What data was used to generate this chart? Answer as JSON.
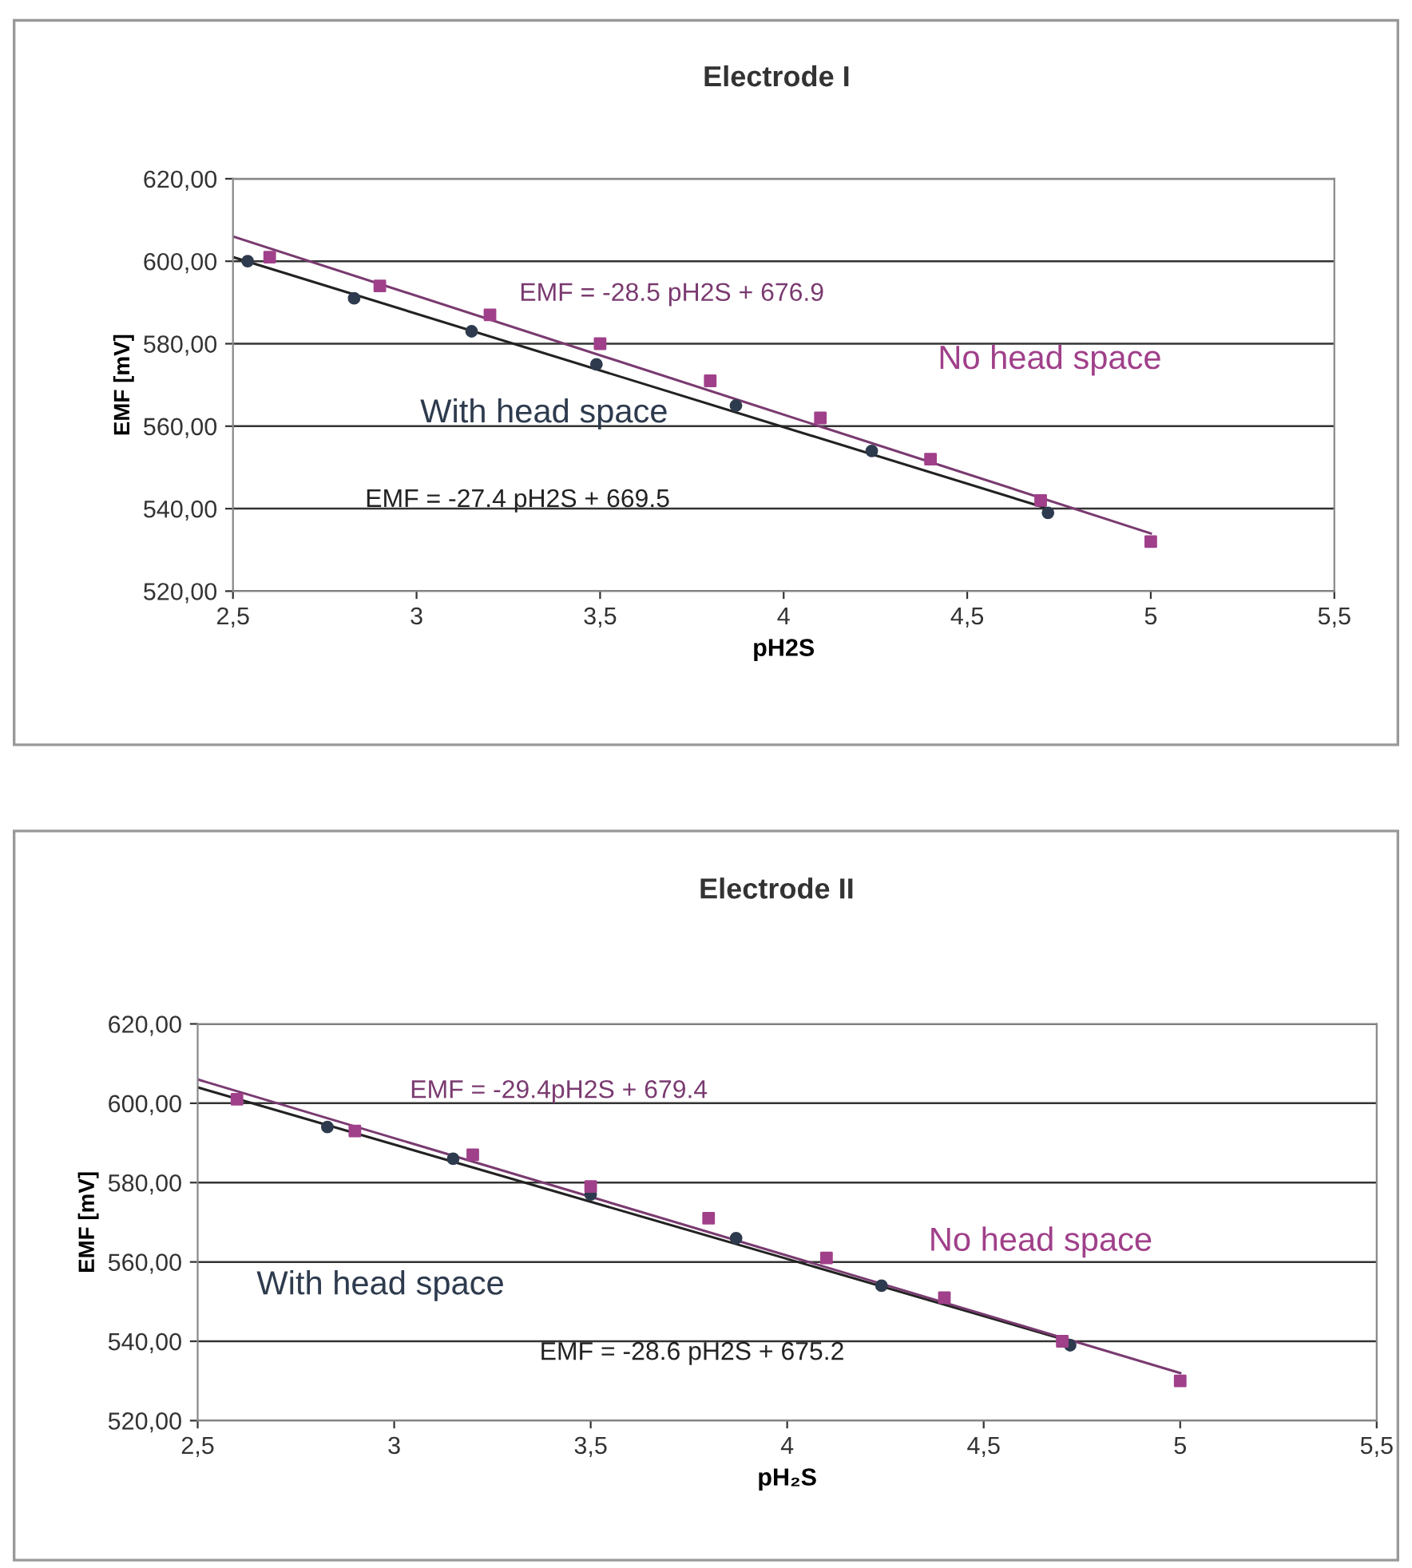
{
  "chart_data": [
    {
      "type": "scatter",
      "title": "Electrode I",
      "xlabel": "pH2S",
      "ylabel": "EMF [mV]",
      "xlim": [
        2.5,
        5.5
      ],
      "ylim": [
        520,
        620
      ],
      "xticks": [
        {
          "value": 2.5,
          "label": "2,5"
        },
        3,
        {
          "value": 3.5,
          "label": "3,5"
        },
        4,
        {
          "value": 4.5,
          "label": "4,5"
        },
        5,
        {
          "value": 5.5,
          "label": "5,5"
        }
      ],
      "yticks": [
        {
          "value": 520,
          "label": "520,00"
        },
        {
          "value": 540,
          "label": "540,00"
        },
        {
          "value": 560,
          "label": "560,00"
        },
        {
          "value": 580,
          "label": "580,00"
        },
        {
          "value": 600,
          "label": "600,00"
        },
        {
          "value": 620,
          "label": "620,00"
        }
      ],
      "grid": "y",
      "legend": false,
      "series": [
        {
          "name": "With head space",
          "marker": "circle",
          "color": "#2e3b4e",
          "x": [
            2.54,
            2.83,
            3.15,
            3.49,
            3.87,
            4.24,
            4.72
          ],
          "values": [
            600,
            591,
            583,
            575,
            565,
            554,
            539
          ]
        },
        {
          "name": "No head space",
          "marker": "square",
          "color": "#a0408a",
          "x": [
            2.6,
            2.9,
            3.2,
            3.5,
            3.8,
            4.1,
            4.4,
            4.7,
            5.0
          ],
          "values": [
            601,
            594,
            587,
            580,
            571,
            562,
            552,
            542,
            532
          ]
        },
        {
          "name": "EMF = -27.4 pH2S + 669.5",
          "type": "line",
          "marker": "none",
          "color": "#222222",
          "x": [
            2.5,
            4.72
          ],
          "values": [
            601,
            540
          ]
        },
        {
          "name": "EMF = -28.5 pH2S + 676.9",
          "type": "line",
          "marker": "none",
          "color": "#7a3a70",
          "x": [
            2.5,
            5.0
          ],
          "values": [
            606,
            534
          ]
        }
      ]
    },
    {
      "type": "scatter",
      "title": "Electrode II",
      "xlabel": "pH₂S",
      "ylabel": "EMF [mV]",
      "xlim": [
        2.5,
        5.5
      ],
      "ylim": [
        520,
        620
      ],
      "xticks": [
        {
          "value": 2.5,
          "label": "2,5"
        },
        3,
        {
          "value": 3.5,
          "label": "3,5"
        },
        4,
        {
          "value": 4.5,
          "label": "4,5"
        },
        5,
        {
          "value": 5.5,
          "label": "5,5"
        }
      ],
      "yticks": [
        {
          "value": 520,
          "label": "520,00"
        },
        {
          "value": 540,
          "label": "540,00"
        },
        {
          "value": 560,
          "label": "560,00"
        },
        {
          "value": 580,
          "label": "580,00"
        },
        {
          "value": 600,
          "label": "600,00"
        },
        {
          "value": 620,
          "label": "620,00"
        }
      ],
      "grid": "y",
      "legend": false,
      "series": [
        {
          "name": "With head space",
          "marker": "circle",
          "color": "#2e3b4e",
          "x": [
            2.83,
            3.15,
            3.5,
            3.87,
            4.24,
            4.72
          ],
          "values": [
            594,
            586,
            577,
            566,
            554,
            539
          ]
        },
        {
          "name": "No head space",
          "marker": "square",
          "color": "#a0408a",
          "x": [
            2.6,
            2.9,
            3.2,
            3.5,
            3.8,
            4.1,
            4.4,
            4.7,
            5.0
          ],
          "values": [
            601,
            593,
            587,
            579,
            571,
            561,
            551,
            540,
            530
          ]
        },
        {
          "name": "EMF = -28.6 pH2S + 675.2",
          "type": "line",
          "marker": "none",
          "color": "#222222",
          "x": [
            2.5,
            4.72
          ],
          "values": [
            604,
            540
          ]
        },
        {
          "name": "EMF = -29.4pH2S + 679.4",
          "type": "line",
          "marker": "none",
          "color": "#7a3a70",
          "x": [
            2.5,
            5.0
          ],
          "values": [
            606,
            532
          ]
        }
      ]
    }
  ]
}
